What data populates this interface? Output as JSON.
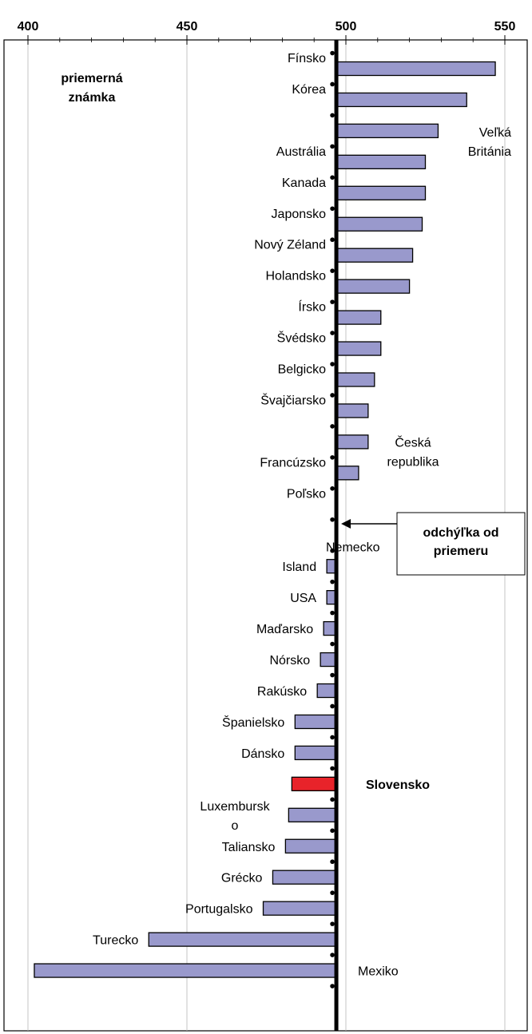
{
  "chart_data": {
    "type": "bar",
    "orientation": "horizontal",
    "axis": {
      "min": 400,
      "max": 550,
      "ticks": [
        400,
        450,
        500,
        550
      ],
      "reference_value": 497,
      "position": "top",
      "grid": true
    },
    "note": [
      "priemerná",
      "známka"
    ],
    "annotation_box": [
      "odchýľka od",
      "priemeru"
    ],
    "highlight_color": "#e8232a",
    "bar_color": "#9999cc",
    "bars": [
      {
        "label": [
          "Fínsko"
        ],
        "value": 547
      },
      {
        "label": [
          "Kórea"
        ],
        "value": 538
      },
      {
        "label": [
          "Veľká",
          "Británia"
        ],
        "value": 529
      },
      {
        "label": [
          "Austrália"
        ],
        "value": 525
      },
      {
        "label": [
          "Kanada"
        ],
        "value": 525
      },
      {
        "label": [
          "Japonsko"
        ],
        "value": 524
      },
      {
        "label": [
          "Nový Zéland"
        ],
        "value": 521
      },
      {
        "label": [
          "Holandsko"
        ],
        "value": 520
      },
      {
        "label": [
          "Írsko"
        ],
        "value": 511
      },
      {
        "label": [
          "Švédsko"
        ],
        "value": 511
      },
      {
        "label": [
          "Belgicko"
        ],
        "value": 509
      },
      {
        "label": [
          "Švajčiarsko"
        ],
        "value": 507
      },
      {
        "label": [
          "Česká",
          "republika"
        ],
        "value": 507
      },
      {
        "label": [
          "Francúzsko"
        ],
        "value": 504
      },
      {
        "label": [
          "Poľsko"
        ],
        "value": 497
      },
      {
        "label": [
          "Nemecko"
        ],
        "value": 497
      },
      {
        "label": [
          "Island"
        ],
        "value": 494
      },
      {
        "label": [
          "USA"
        ],
        "value": 494
      },
      {
        "label": [
          "Maďarsko"
        ],
        "value": 493
      },
      {
        "label": [
          "Nórsko"
        ],
        "value": 492
      },
      {
        "label": [
          "Rakúsko"
        ],
        "value": 491
      },
      {
        "label": [
          "Španielsko"
        ],
        "value": 484
      },
      {
        "label": [
          "Dánsko"
        ],
        "value": 484
      },
      {
        "label": [
          "Slovensko"
        ],
        "value": 483,
        "highlight": true
      },
      {
        "label": [
          "Luxembursk",
          "o"
        ],
        "value": 482
      },
      {
        "label": [
          "Taliansko"
        ],
        "value": 481
      },
      {
        "label": [
          "Grécko"
        ],
        "value": 477
      },
      {
        "label": [
          "Portugalsko"
        ],
        "value": 474
      },
      {
        "label": [
          "Turecko"
        ],
        "value": 438
      },
      {
        "label": [
          "Mexiko"
        ],
        "value": 402
      }
    ]
  }
}
